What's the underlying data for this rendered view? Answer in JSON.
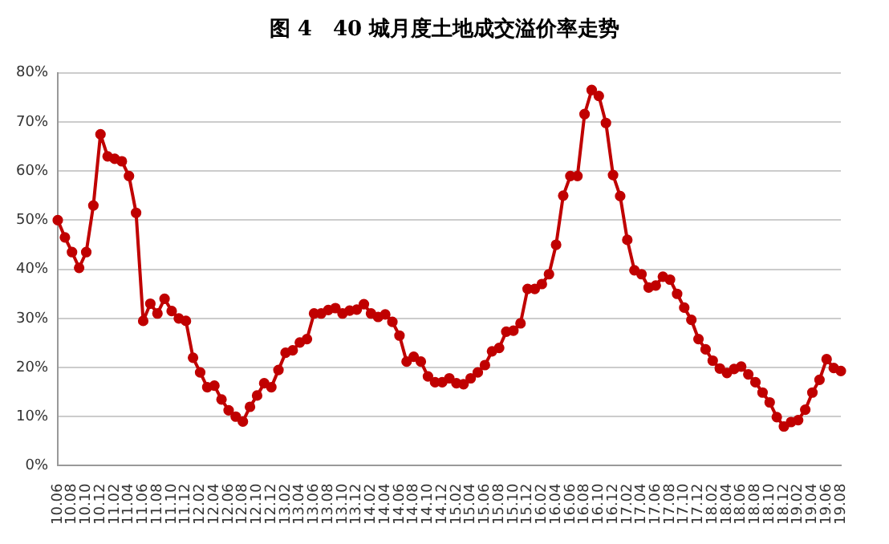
{
  "chart_data": {
    "type": "line",
    "title": "图 4　40 城月度土地成交溢价率走势",
    "categories": [
      "10.06",
      null,
      "10.08",
      null,
      "10.10",
      null,
      "10.12",
      null,
      "11.02",
      null,
      "11.04",
      null,
      "11.06",
      null,
      "11.08",
      null,
      "11.10",
      null,
      "11.12",
      null,
      "12.02",
      null,
      "12.04",
      null,
      "12.06",
      null,
      "12.08",
      null,
      "12.10",
      null,
      "12.12",
      null,
      "13.02",
      null,
      "13.04",
      null,
      "13.06",
      null,
      "13.08",
      null,
      "13.10",
      null,
      "13.12",
      null,
      "14.02",
      null,
      "14.04",
      null,
      "14.06",
      null,
      "14.08",
      null,
      "14.10",
      null,
      "14.12",
      null,
      "15.02",
      null,
      "15.04",
      null,
      "15.06",
      null,
      "15.08",
      null,
      "15.10",
      null,
      "15.12",
      null,
      "16.02",
      null,
      "16.04",
      null,
      "16.06",
      null,
      "16.08",
      null,
      "16.10",
      null,
      "16.12",
      null,
      "17.02",
      null,
      "17.04",
      null,
      "17.06",
      null,
      "17.08",
      null,
      "17.10",
      null,
      "17.12",
      null,
      "18.02",
      null,
      "18.04",
      null,
      "18.06",
      null,
      "18.08",
      null,
      "18.10",
      null,
      "18.12",
      null,
      "19.02",
      null,
      "19.04",
      null,
      "19.06",
      null,
      "19.08"
    ],
    "series": [
      {
        "color": "#c00000",
        "values": [
          50,
          46.5,
          43.5,
          40.3,
          43.5,
          53,
          67.5,
          63,
          62.5,
          62,
          59,
          51.5,
          29.5,
          33,
          31,
          34,
          31.5,
          30,
          29.5,
          22,
          19,
          16,
          16.3,
          13.5,
          11.3,
          10,
          9,
          12,
          14.3,
          16.8,
          16,
          19.5,
          23,
          23.5,
          25.1,
          25.8,
          31,
          31,
          31.7,
          32.1,
          31,
          31.6,
          31.8,
          32.9,
          31,
          30.3,
          30.8,
          29.3,
          26.5,
          21.2,
          22.2,
          21.2,
          18.2,
          17,
          17,
          17.8,
          16.8,
          16.6,
          17.8,
          19,
          20.5,
          23.3,
          24,
          27.3,
          27.5,
          29,
          36,
          36,
          37,
          39,
          45,
          55,
          59,
          59,
          71.6,
          76.5,
          75.3,
          69.8,
          59.2,
          54.9,
          46,
          39.8,
          39,
          36.3,
          36.7,
          38.5,
          37.9,
          35,
          32.2,
          29.7,
          25.8,
          23.7,
          21.4,
          19.8,
          18.9,
          19.7,
          20.2,
          18.6,
          17,
          14.9,
          12.9,
          9.9,
          8,
          8.9,
          9.3,
          11.4,
          14.9,
          17.5,
          21.7,
          19.9,
          19.3
        ]
      }
    ],
    "ylim": [
      0,
      80
    ],
    "yticks": [
      {
        "value": 0,
        "label": "0%"
      },
      {
        "value": 10,
        "label": "10%"
      },
      {
        "value": 20,
        "label": "20%"
      },
      {
        "value": 30,
        "label": "30%"
      },
      {
        "value": 40,
        "label": "40%"
      },
      {
        "value": 50,
        "label": "50%"
      },
      {
        "value": 60,
        "label": "60%"
      },
      {
        "value": 70,
        "label": "70%"
      },
      {
        "value": 80,
        "label": "80%"
      }
    ],
    "grid": "y",
    "legend": false,
    "marker": "circle",
    "line_style": "solid"
  }
}
